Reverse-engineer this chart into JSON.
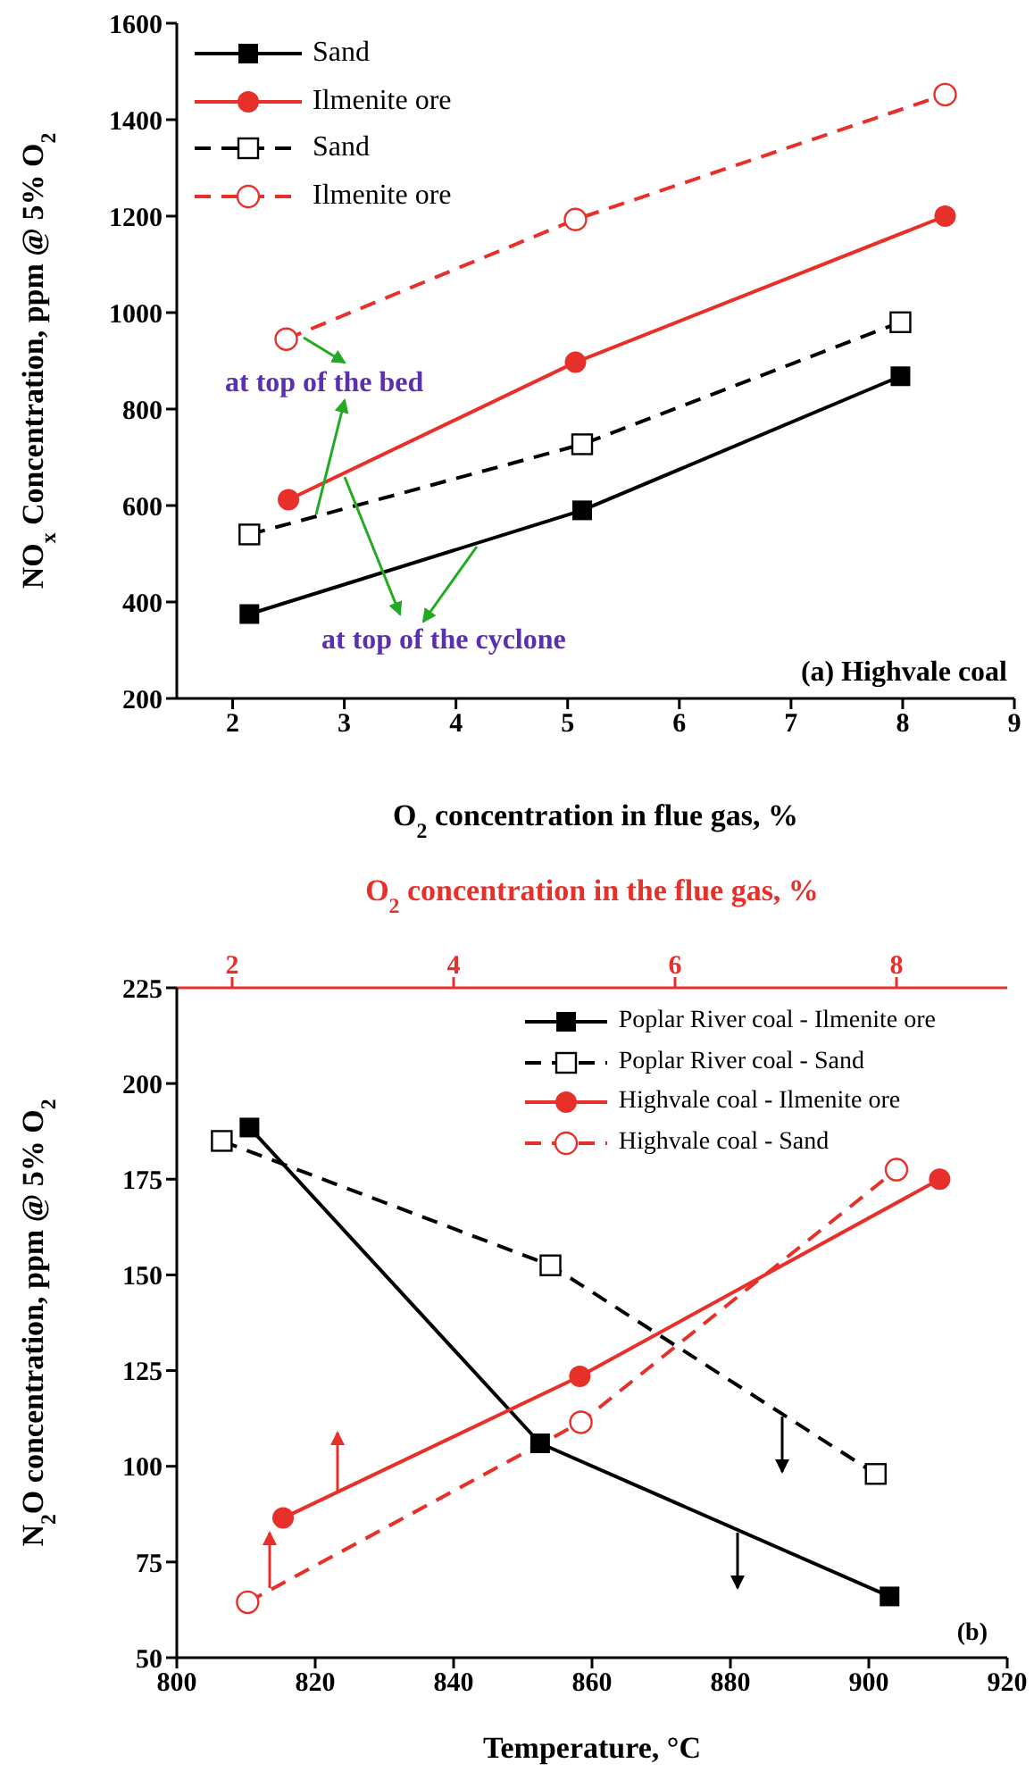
{
  "chart_data": [
    {
      "type": "line",
      "ylabel": "NO$_{x}$ Concentration, ppm @ 5% O$_{2}$",
      "xlabel": "O$_{2}$ concentration in flue gas, %",
      "xlim": [
        1.5,
        9
      ],
      "xticks": [
        2,
        3,
        4,
        5,
        6,
        7,
        8,
        9
      ],
      "ylim": [
        200,
        1600
      ],
      "yticks": [
        200,
        400,
        600,
        800,
        1000,
        1200,
        1400,
        1600
      ],
      "legend": "top left",
      "annotations": [
        "at top of the bed",
        "at top of the cyclone",
        "(a) Highvale coal"
      ],
      "series": [
        {
          "name": "Sand",
          "color": "#000000",
          "marker": "square",
          "line_style": "solid",
          "x": [
            2.15,
            5.13,
            7.98
          ],
          "values": [
            375,
            590,
            868
          ]
        },
        {
          "name": "Ilmenite ore",
          "color": "#e8302a",
          "marker": "circle",
          "line_style": "solid",
          "x": [
            2.5,
            5.07,
            8.38
          ],
          "values": [
            612,
            897,
            1200
          ]
        },
        {
          "name": "Sand",
          "color": "#000000",
          "marker": "square",
          "line_style": "dashed",
          "x": [
            2.15,
            5.13,
            7.98
          ],
          "values": [
            540,
            727,
            980
          ]
        },
        {
          "name": "Ilmenite ore",
          "color": "#e8302a",
          "marker": "circle",
          "line_style": "dashed",
          "x": [
            2.48,
            5.07,
            8.38
          ],
          "values": [
            945,
            1193,
            1452
          ]
        }
      ]
    },
    {
      "type": "line",
      "ylabel": "N$_{2}$O concentration, ppm @ 5% O$_{2}$",
      "xlabel": "Temperature, °C",
      "x2label": "O$_{2}$ concentration in the flue gas, %",
      "xlim": [
        800,
        920
      ],
      "xticks": [
        800,
        820,
        840,
        860,
        880,
        900,
        920
      ],
      "x2lim": [
        1.5,
        9
      ],
      "x2ticks": [
        2,
        4,
        6,
        8
      ],
      "ylim": [
        50,
        225
      ],
      "yticks": [
        50,
        75,
        100,
        125,
        150,
        175,
        200,
        225
      ],
      "legend": "top right",
      "annotations": [
        "(b)"
      ],
      "series": [
        {
          "name": "Poplar River coal - Ilmenite ore",
          "color": "#000000",
          "marker": "square",
          "line_style": "solid",
          "x": [
            810.5,
            852.5,
            903
          ],
          "values": [
            188.5,
            106,
            66
          ]
        },
        {
          "name": "Poplar River coal - Sand",
          "color": "#000000",
          "marker": "square",
          "line_style": "dashed",
          "x": [
            806.5,
            854,
            901
          ],
          "values": [
            185,
            152.5,
            98
          ]
        },
        {
          "name": "Highvale coal - Ilmenite ore",
          "color": "#e8302a",
          "marker": "circle",
          "line_style": "solid",
          "axis": "x2",
          "x": [
            2.46,
            5.14,
            8.39
          ],
          "values": [
            86.5,
            123.5,
            175
          ]
        },
        {
          "name": "Highvale coal - Sand",
          "color": "#e8302a",
          "marker": "circle",
          "line_style": "dashed",
          "axis": "x2",
          "x": [
            2.14,
            5.15,
            8.0
          ],
          "values": [
            64.5,
            111.5,
            177.5
          ]
        }
      ]
    }
  ]
}
